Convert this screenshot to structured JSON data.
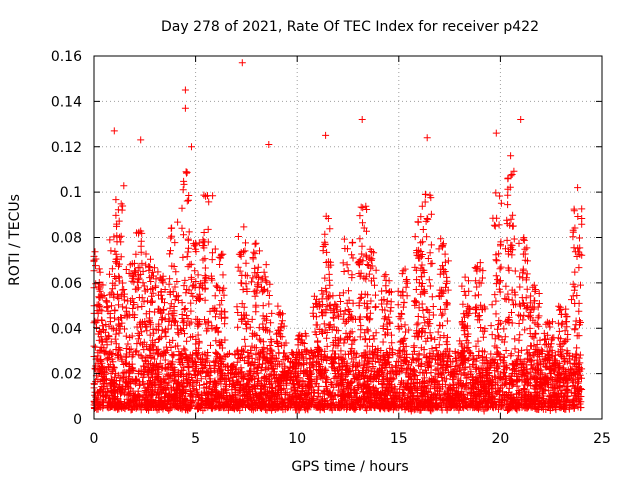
{
  "colors": {
    "series": "#ff0000",
    "grid": "#a0a0a0",
    "axis": "#000000",
    "background": "#ffffff"
  },
  "chart_data": {
    "type": "scatter",
    "title": "Day 278 of 2021, Rate Of TEC Index for receiver p422",
    "xlabel": "GPS time / hours",
    "ylabel": "ROTI / TECUs",
    "xlim": [
      0,
      25
    ],
    "ylim": [
      0,
      0.16
    ],
    "xticks": [
      0,
      5,
      10,
      15,
      20,
      25
    ],
    "xtick_labels": [
      "0",
      "5",
      "10",
      "15",
      "20",
      "25"
    ],
    "yticks": [
      0,
      0.02,
      0.04,
      0.06,
      0.08,
      0.1,
      0.12,
      0.14,
      0.16
    ],
    "ytick_labels": [
      "0",
      "0.02",
      "0.04",
      "0.06",
      "0.08",
      "0.1",
      "0.12",
      "0.14",
      "0.16"
    ],
    "grid": true,
    "marker": "+",
    "series": [
      {
        "name": "ROTI p422",
        "x_range": [
          0,
          24
        ],
        "typical_band": [
          0.005,
          0.03
        ],
        "burst_peaks": [
          {
            "x": 0.1,
            "y": 0.075
          },
          {
            "x": 0.5,
            "y": 0.06
          },
          {
            "x": 1.0,
            "y": 0.085
          },
          {
            "x": 1.3,
            "y": 0.105
          },
          {
            "x": 1.8,
            "y": 0.07
          },
          {
            "x": 2.3,
            "y": 0.09
          },
          {
            "x": 2.8,
            "y": 0.075
          },
          {
            "x": 3.3,
            "y": 0.065
          },
          {
            "x": 3.9,
            "y": 0.09
          },
          {
            "x": 4.5,
            "y": 0.11
          },
          {
            "x": 5.0,
            "y": 0.08
          },
          {
            "x": 5.6,
            "y": 0.1
          },
          {
            "x": 6.2,
            "y": 0.075
          },
          {
            "x": 7.3,
            "y": 0.085
          },
          {
            "x": 8.0,
            "y": 0.08
          },
          {
            "x": 8.5,
            "y": 0.07
          },
          {
            "x": 9.2,
            "y": 0.05
          },
          {
            "x": 10.2,
            "y": 0.04
          },
          {
            "x": 11.0,
            "y": 0.06
          },
          {
            "x": 11.4,
            "y": 0.1
          },
          {
            "x": 11.9,
            "y": 0.055
          },
          {
            "x": 12.5,
            "y": 0.08
          },
          {
            "x": 13.2,
            "y": 0.095
          },
          {
            "x": 13.7,
            "y": 0.075
          },
          {
            "x": 14.4,
            "y": 0.065
          },
          {
            "x": 15.2,
            "y": 0.07
          },
          {
            "x": 16.0,
            "y": 0.09
          },
          {
            "x": 16.4,
            "y": 0.105
          },
          {
            "x": 17.2,
            "y": 0.08
          },
          {
            "x": 18.3,
            "y": 0.065
          },
          {
            "x": 19.0,
            "y": 0.07
          },
          {
            "x": 19.8,
            "y": 0.1
          },
          {
            "x": 20.5,
            "y": 0.11
          },
          {
            "x": 21.1,
            "y": 0.08
          },
          {
            "x": 21.7,
            "y": 0.06
          },
          {
            "x": 22.4,
            "y": 0.045
          },
          {
            "x": 23.1,
            "y": 0.05
          },
          {
            "x": 23.8,
            "y": 0.095
          }
        ],
        "notable_points": [
          {
            "x": 7.3,
            "y": 0.157
          },
          {
            "x": 4.5,
            "y": 0.145
          },
          {
            "x": 4.5,
            "y": 0.137
          },
          {
            "x": 11.4,
            "y": 0.125
          },
          {
            "x": 13.2,
            "y": 0.132
          },
          {
            "x": 21.0,
            "y": 0.132
          },
          {
            "x": 1.0,
            "y": 0.127
          },
          {
            "x": 2.3,
            "y": 0.123
          },
          {
            "x": 4.8,
            "y": 0.12
          },
          {
            "x": 8.6,
            "y": 0.121
          },
          {
            "x": 16.4,
            "y": 0.124
          },
          {
            "x": 19.8,
            "y": 0.126
          },
          {
            "x": 20.5,
            "y": 0.116
          },
          {
            "x": 23.8,
            "y": 0.102
          }
        ]
      }
    ]
  }
}
